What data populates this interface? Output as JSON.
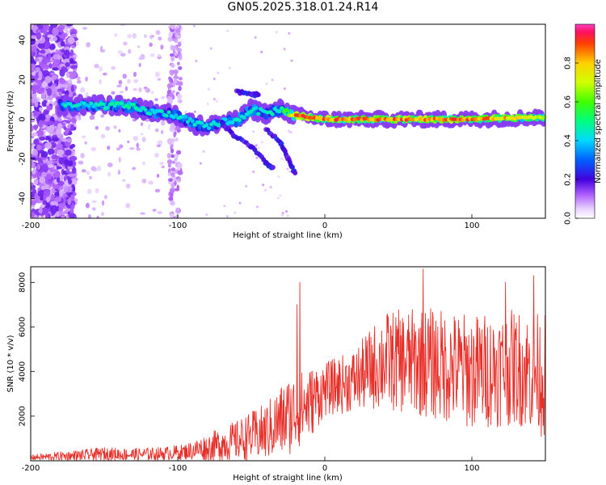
{
  "title": "GN05.2025.318.01.24.R14",
  "chart_data": [
    {
      "type": "heatmap",
      "xlabel": "Height of straight line (km)",
      "ylabel": "Frequency (Hz)",
      "xlim": [
        -200,
        150
      ],
      "ylim": [
        -50,
        48
      ],
      "xticks": [
        -200,
        -100,
        0,
        100
      ],
      "yticks": [
        -40,
        -20,
        0,
        20,
        40
      ],
      "colorbar": {
        "label": "Normalized spectral amplitude",
        "range": [
          0,
          1
        ],
        "ticks": [
          0.0,
          0.2,
          0.4,
          0.6,
          0.8
        ],
        "tick_labels": [
          "0.0",
          "0.2",
          "0.4",
          "0.6",
          "0.8"
        ]
      },
      "ridge": [
        {
          "x": -175,
          "f": 7,
          "amp": 0.45
        },
        {
          "x": -160,
          "f": 7,
          "amp": 0.45
        },
        {
          "x": -145,
          "f": 7,
          "amp": 0.5
        },
        {
          "x": -130,
          "f": 6,
          "amp": 0.5
        },
        {
          "x": -120,
          "f": 4,
          "amp": 0.45
        },
        {
          "x": -110,
          "f": 3,
          "amp": 0.45
        },
        {
          "x": -100,
          "f": 2,
          "amp": 0.45
        },
        {
          "x": -90,
          "f": -2,
          "amp": 0.45
        },
        {
          "x": -80,
          "f": -4,
          "amp": 0.45
        },
        {
          "x": -70,
          "f": -1,
          "amp": 0.45
        },
        {
          "x": -60,
          "f": -1,
          "amp": 0.45
        },
        {
          "x": -50,
          "f": 5,
          "amp": 0.45
        },
        {
          "x": -40,
          "f": 3,
          "amp": 0.45
        },
        {
          "x": -30,
          "f": 5,
          "amp": 0.45
        },
        {
          "x": -20,
          "f": 2,
          "amp": 0.9
        },
        {
          "x": 0,
          "f": 0,
          "amp": 0.9
        },
        {
          "x": 50,
          "f": 0,
          "amp": 0.9
        },
        {
          "x": 100,
          "f": 0,
          "amp": 0.9
        },
        {
          "x": 150,
          "f": 1,
          "amp": 0.75
        }
      ],
      "side_branches": [
        {
          "points": [
            [
              -70,
              -2
            ],
            [
              -62,
              -8
            ],
            [
              -50,
              -14
            ],
            [
              -40,
              -22
            ],
            [
              -35,
              -25
            ]
          ]
        },
        {
          "points": [
            [
              -40,
              -5
            ],
            [
              -30,
              -12
            ],
            [
              -25,
              -20
            ],
            [
              -20,
              -28
            ]
          ]
        },
        {
          "points": [
            [
              -60,
              14
            ],
            [
              -50,
              13
            ],
            [
              -45,
              12
            ]
          ]
        }
      ]
    },
    {
      "type": "line",
      "xlabel": "Height of straight line (km)",
      "ylabel": "SNR (10 * v/v)",
      "xlim": [
        -200,
        150
      ],
      "ylim": [
        0,
        8700
      ],
      "xticks": [
        -200,
        -100,
        0,
        100
      ],
      "yticks": [
        2000,
        4000,
        6000,
        8000
      ],
      "envelope": [
        {
          "x": -200,
          "mean": 150,
          "amp": 120
        },
        {
          "x": -170,
          "mean": 220,
          "amp": 250
        },
        {
          "x": -150,
          "mean": 300,
          "amp": 300
        },
        {
          "x": -130,
          "mean": 280,
          "amp": 280
        },
        {
          "x": -110,
          "mean": 320,
          "amp": 300
        },
        {
          "x": -95,
          "mean": 400,
          "amp": 350
        },
        {
          "x": -80,
          "mean": 600,
          "amp": 600
        },
        {
          "x": -60,
          "mean": 900,
          "amp": 900
        },
        {
          "x": -40,
          "mean": 1300,
          "amp": 1300
        },
        {
          "x": -25,
          "mean": 2000,
          "amp": 1800
        },
        {
          "x": -10,
          "mean": 2600,
          "amp": 1600
        },
        {
          "x": 0,
          "mean": 3200,
          "amp": 1200
        },
        {
          "x": 20,
          "mean": 3600,
          "amp": 1400
        },
        {
          "x": 40,
          "mean": 4500,
          "amp": 2200
        },
        {
          "x": 70,
          "mean": 4400,
          "amp": 2500
        },
        {
          "x": 100,
          "mean": 4000,
          "amp": 2600
        },
        {
          "x": 130,
          "mean": 4200,
          "amp": 2600
        },
        {
          "x": 150,
          "mean": 3800,
          "amp": 2800
        }
      ],
      "peaks": [
        {
          "x": -17,
          "y": 8000
        },
        {
          "x": -19,
          "y": 7000
        },
        {
          "x": 67,
          "y": 8600
        },
        {
          "x": 142,
          "y": 8300
        },
        {
          "x": 123,
          "y": 8000
        }
      ],
      "color": "#e8302a"
    }
  ]
}
